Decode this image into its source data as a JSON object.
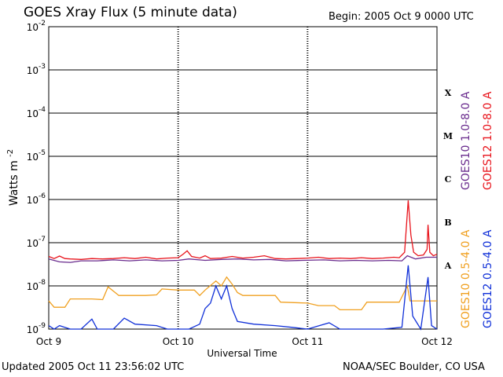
{
  "header": {
    "title": "GOES Xray Flux (5 minute data)",
    "begin": "Begin:  2005 Oct 9 0000 UTC"
  },
  "footer": {
    "updated": "Updated 2005 Oct 11 23:56:02 UTC",
    "credit": "NOAA/SEC Boulder, CO USA"
  },
  "chart_data": {
    "type": "line",
    "title": "GOES Xray Flux (5 minute data)",
    "xlabel": "Universal Time",
    "ylabel_base": "Watts m",
    "ylabel_exp": "-2",
    "yscale": "log",
    "ylim": [
      1e-09,
      0.01
    ],
    "xlim": [
      "2005-10-09",
      "2005-10-12"
    ],
    "grid": true,
    "xticks": [
      {
        "label": "Oct 9",
        "x": "2005-10-09"
      },
      {
        "label": "Oct 10",
        "x": "2005-10-10"
      },
      {
        "label": "Oct 11",
        "x": "2005-10-11"
      },
      {
        "label": "Oct 12",
        "x": "2005-10-12"
      }
    ],
    "yticks": [
      {
        "base": "10",
        "exp": "-2",
        "value": 0.01
      },
      {
        "base": "10",
        "exp": "-3",
        "value": 0.001
      },
      {
        "base": "10",
        "exp": "-4",
        "value": 0.0001
      },
      {
        "base": "10",
        "exp": "-5",
        "value": 1e-05
      },
      {
        "base": "10",
        "exp": "-6",
        "value": 1e-06
      },
      {
        "base": "10",
        "exp": "-7",
        "value": 1e-07
      },
      {
        "base": "10",
        "exp": "-8",
        "value": 1e-08
      },
      {
        "base": "10",
        "exp": "-9",
        "value": 1e-09
      }
    ],
    "flare_classes": [
      {
        "label": "X",
        "value": 0.0003
      },
      {
        "label": "M",
        "value": 3e-05
      },
      {
        "label": "C",
        "value": 3e-06
      },
      {
        "label": "B",
        "value": 3e-07
      },
      {
        "label": "A",
        "value": 3e-08
      }
    ],
    "series": [
      {
        "name": "GOES12 1.0-8.0 A",
        "color": "#e8141c",
        "points": [
          [
            "2005-10-09 00:00",
            4.8e-08
          ],
          [
            "2005-10-09 01:00",
            4.3e-08
          ],
          [
            "2005-10-09 02:00",
            4.9e-08
          ],
          [
            "2005-10-09 03:00",
            4.3e-08
          ],
          [
            "2005-10-09 04:00",
            4.2e-08
          ],
          [
            "2005-10-09 06:00",
            4.1e-08
          ],
          [
            "2005-10-09 08:00",
            4.3e-08
          ],
          [
            "2005-10-09 10:00",
            4.2e-08
          ],
          [
            "2005-10-09 12:00",
            4.3e-08
          ],
          [
            "2005-10-09 14:00",
            4.5e-08
          ],
          [
            "2005-10-09 16:00",
            4.3e-08
          ],
          [
            "2005-10-09 18:00",
            4.6e-08
          ],
          [
            "2005-10-09 20:00",
            4.2e-08
          ],
          [
            "2005-10-09 22:00",
            4.4e-08
          ],
          [
            "2005-10-10 00:00",
            4.5e-08
          ],
          [
            "2005-10-10 01:00",
            5.5e-08
          ],
          [
            "2005-10-10 01:40",
            6.5e-08
          ],
          [
            "2005-10-10 02:30",
            4.8e-08
          ],
          [
            "2005-10-10 04:00",
            4.4e-08
          ],
          [
            "2005-10-10 05:00",
            5e-08
          ],
          [
            "2005-10-10 06:00",
            4.3e-08
          ],
          [
            "2005-10-10 08:00",
            4.4e-08
          ],
          [
            "2005-10-10 10:00",
            4.8e-08
          ],
          [
            "2005-10-10 12:00",
            4.4e-08
          ],
          [
            "2005-10-10 14:00",
            4.6e-08
          ],
          [
            "2005-10-10 16:00",
            5e-08
          ],
          [
            "2005-10-10 18:00",
            4.3e-08
          ],
          [
            "2005-10-10 20:00",
            4.2e-08
          ],
          [
            "2005-10-10 22:00",
            4.3e-08
          ],
          [
            "2005-10-11 00:00",
            4.4e-08
          ],
          [
            "2005-10-11 02:00",
            4.6e-08
          ],
          [
            "2005-10-11 04:00",
            4.3e-08
          ],
          [
            "2005-10-11 06:00",
            4.4e-08
          ],
          [
            "2005-10-11 08:00",
            4.3e-08
          ],
          [
            "2005-10-11 10:00",
            4.5e-08
          ],
          [
            "2005-10-11 12:00",
            4.3e-08
          ],
          [
            "2005-10-11 14:00",
            4.4e-08
          ],
          [
            "2005-10-11 16:00",
            4.6e-08
          ],
          [
            "2005-10-11 17:00",
            4.5e-08
          ],
          [
            "2005-10-11 18:00",
            6e-08
          ],
          [
            "2005-10-11 18:40",
            9.5e-07
          ],
          [
            "2005-10-11 19:10",
            1.5e-07
          ],
          [
            "2005-10-11 19:40",
            6e-08
          ],
          [
            "2005-10-11 20:30",
            5e-08
          ],
          [
            "2005-10-11 21:30",
            5.2e-08
          ],
          [
            "2005-10-11 22:10",
            7e-08
          ],
          [
            "2005-10-11 22:20",
            2.6e-07
          ],
          [
            "2005-10-11 22:40",
            6e-08
          ],
          [
            "2005-10-11 23:20",
            5e-08
          ],
          [
            "2005-10-11 24:00",
            5.4e-08
          ]
        ]
      },
      {
        "name": "GOES10 1.0-8.0 A",
        "color": "#6a2c8e",
        "points": [
          [
            "2005-10-09 00:00",
            4.2e-08
          ],
          [
            "2005-10-09 02:00",
            3.6e-08
          ],
          [
            "2005-10-09 04:00",
            3.5e-08
          ],
          [
            "2005-10-09 06:00",
            3.8e-08
          ],
          [
            "2005-10-09 09:00",
            3.8e-08
          ],
          [
            "2005-10-09 12:00",
            4e-08
          ],
          [
            "2005-10-09 15:00",
            3.8e-08
          ],
          [
            "2005-10-09 18:00",
            4e-08
          ],
          [
            "2005-10-09 21:00",
            3.8e-08
          ],
          [
            "2005-10-10 00:00",
            3.9e-08
          ],
          [
            "2005-10-10 02:00",
            4.2e-08
          ],
          [
            "2005-10-10 05:00",
            3.9e-08
          ],
          [
            "2005-10-10 08:00",
            4.1e-08
          ],
          [
            "2005-10-10 11:00",
            4.2e-08
          ],
          [
            "2005-10-10 14:00",
            4e-08
          ],
          [
            "2005-10-10 17:00",
            4.1e-08
          ],
          [
            "2005-10-10 20:00",
            3.8e-08
          ],
          [
            "2005-10-10 23:00",
            3.9e-08
          ],
          [
            "2005-10-11 03:00",
            4e-08
          ],
          [
            "2005-10-11 06:00",
            3.8e-08
          ],
          [
            "2005-10-11 09:00",
            3.9e-08
          ],
          [
            "2005-10-11 12:00",
            3.8e-08
          ],
          [
            "2005-10-11 15:00",
            3.9e-08
          ],
          [
            "2005-10-11 17:30",
            3.8e-08
          ],
          [
            "2005-10-11 18:30",
            5e-08
          ],
          [
            "2005-10-11 20:00",
            4.2e-08
          ],
          [
            "2005-10-11 22:00",
            4.6e-08
          ],
          [
            "2005-10-11 24:00",
            4.6e-08
          ]
        ]
      },
      {
        "name": "GOES10 0.5-4.0 A",
        "color": "#f0a020",
        "points": [
          [
            "2005-10-09 00:00",
            4.5e-09
          ],
          [
            "2005-10-09 01:00",
            3.2e-09
          ],
          [
            "2005-10-09 03:00",
            3.2e-09
          ],
          [
            "2005-10-09 04:00",
            5e-09
          ],
          [
            "2005-10-09 08:00",
            5e-09
          ],
          [
            "2005-10-09 10:00",
            4.8e-09
          ],
          [
            "2005-10-09 11:00",
            9.5e-09
          ],
          [
            "2005-10-09 13:00",
            6e-09
          ],
          [
            "2005-10-09 18:00",
            6e-09
          ],
          [
            "2005-10-09 20:00",
            6.2e-09
          ],
          [
            "2005-10-09 21:00",
            8.5e-09
          ],
          [
            "2005-10-10 00:00",
            8e-09
          ],
          [
            "2005-10-10 03:00",
            8e-09
          ],
          [
            "2005-10-10 04:00",
            6e-09
          ],
          [
            "2005-10-10 05:00",
            8e-09
          ],
          [
            "2005-10-10 07:00",
            1.3e-08
          ],
          [
            "2005-10-10 08:00",
            1e-08
          ],
          [
            "2005-10-10 09:00",
            1.6e-08
          ],
          [
            "2005-10-10 10:00",
            1.1e-08
          ],
          [
            "2005-10-10 11:00",
            7e-09
          ],
          [
            "2005-10-10 12:00",
            6e-09
          ],
          [
            "2005-10-10 18:00",
            6e-09
          ],
          [
            "2005-10-10 19:00",
            4.2e-09
          ],
          [
            "2005-10-11 00:00",
            4e-09
          ],
          [
            "2005-10-11 02:00",
            3.5e-09
          ],
          [
            "2005-10-11 05:00",
            3.5e-09
          ],
          [
            "2005-10-11 06:00",
            2.8e-09
          ],
          [
            "2005-10-11 10:00",
            2.8e-09
          ],
          [
            "2005-10-11 11:00",
            4.2e-09
          ],
          [
            "2005-10-11 17:00",
            4.2e-09
          ],
          [
            "2005-10-11 18:30",
            1e-08
          ],
          [
            "2005-10-11 19:00",
            4.5e-09
          ],
          [
            "2005-10-11 24:00",
            4.5e-09
          ]
        ]
      },
      {
        "name": "GOES12 0.5-4.0 A",
        "color": "#1030d8",
        "points": [
          [
            "2005-10-09 00:00",
            1.2e-09
          ],
          [
            "2005-10-09 01:00",
            1e-09
          ],
          [
            "2005-10-09 02:00",
            1.2e-09
          ],
          [
            "2005-10-09 04:00",
            1e-09
          ],
          [
            "2005-10-09 06:00",
            1e-09
          ],
          [
            "2005-10-09 08:00",
            1.7e-09
          ],
          [
            "2005-10-09 09:00",
            1e-09
          ],
          [
            "2005-10-09 12:00",
            1e-09
          ],
          [
            "2005-10-09 14:00",
            1.8e-09
          ],
          [
            "2005-10-09 16:00",
            1.3e-09
          ],
          [
            "2005-10-09 20:00",
            1.2e-09
          ],
          [
            "2005-10-09 22:00",
            1e-09
          ],
          [
            "2005-10-10 02:00",
            1e-09
          ],
          [
            "2005-10-10 04:00",
            1.3e-09
          ],
          [
            "2005-10-10 05:00",
            3e-09
          ],
          [
            "2005-10-10 06:00",
            4e-09
          ],
          [
            "2005-10-10 07:00",
            1e-08
          ],
          [
            "2005-10-10 08:00",
            5e-09
          ],
          [
            "2005-10-10 09:00",
            1e-08
          ],
          [
            "2005-10-10 10:00",
            3e-09
          ],
          [
            "2005-10-10 11:00",
            1.5e-09
          ],
          [
            "2005-10-10 14:00",
            1.3e-09
          ],
          [
            "2005-10-10 18:00",
            1.2e-09
          ],
          [
            "2005-10-10 21:00",
            1.1e-09
          ],
          [
            "2005-10-11 00:00",
            1e-09
          ],
          [
            "2005-10-11 04:00",
            1.4e-09
          ],
          [
            "2005-10-11 06:00",
            1e-09
          ],
          [
            "2005-10-11 10:00",
            1e-09
          ],
          [
            "2005-10-11 14:00",
            1e-09
          ],
          [
            "2005-10-11 17:30",
            1.1e-09
          ],
          [
            "2005-10-11 18:40",
            3e-08
          ],
          [
            "2005-10-11 19:30",
            2e-09
          ],
          [
            "2005-10-11 21:00",
            1e-09
          ],
          [
            "2005-10-11 22:20",
            1.6e-08
          ],
          [
            "2005-10-11 23:00",
            1.2e-09
          ],
          [
            "2005-10-11 24:00",
            1e-09
          ]
        ]
      }
    ]
  }
}
